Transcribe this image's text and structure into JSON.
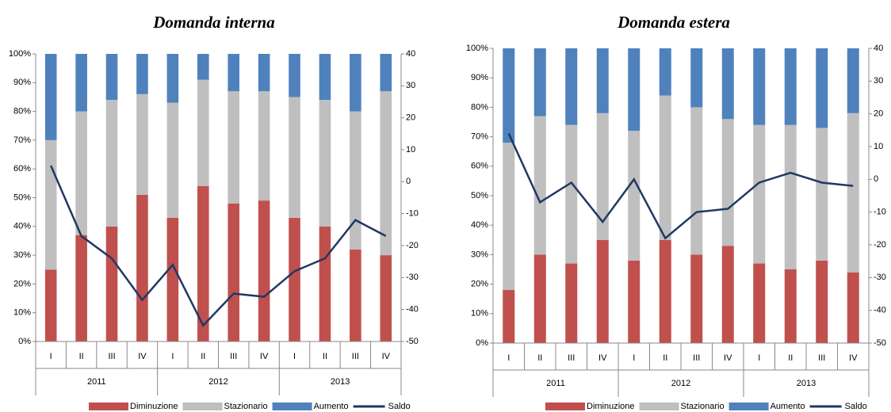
{
  "chart_data": [
    {
      "type": "bar",
      "stacked": true,
      "title": "Domanda interna",
      "categories": [
        "I",
        "II",
        "III",
        "IV",
        "I",
        "II",
        "III",
        "IV",
        "I",
        "II",
        "III",
        "IV"
      ],
      "groups": [
        "2011",
        "2012",
        "2013"
      ],
      "series": [
        {
          "name": "Diminuzione",
          "color": "#c0504d",
          "values": [
            25,
            37,
            40,
            51,
            43,
            54,
            48,
            49,
            43,
            40,
            32,
            30
          ]
        },
        {
          "name": "Stazionario",
          "color": "#bfbfbf",
          "values": [
            45,
            43,
            44,
            35,
            40,
            37,
            39,
            38,
            42,
            44,
            48,
            57
          ]
        },
        {
          "name": "Aumento",
          "color": "#4f81bd",
          "values": [
            30,
            20,
            16,
            14,
            17,
            9,
            13,
            13,
            15,
            16,
            20,
            13
          ]
        },
        {
          "name": "Saldo",
          "color": "#1f3864",
          "type": "line",
          "axis": "y2",
          "values": [
            5,
            -17,
            -24,
            -37,
            -26,
            -45,
            -35,
            -36,
            -28,
            -24,
            -12,
            -17
          ]
        }
      ],
      "ylim": [
        0,
        100
      ],
      "yticks": [
        {
          "value": 0,
          "label": "0%"
        },
        {
          "value": 10,
          "label": "10%"
        },
        {
          "value": 20,
          "label": "20%"
        },
        {
          "value": 30,
          "label": "30%"
        },
        {
          "value": 40,
          "label": "40%"
        },
        {
          "value": 50,
          "label": "50%"
        },
        {
          "value": 60,
          "label": "60%"
        },
        {
          "value": 70,
          "label": "70%"
        },
        {
          "value": 80,
          "label": "80%"
        },
        {
          "value": 90,
          "label": "90%"
        },
        {
          "value": 100,
          "label": "100%"
        }
      ],
      "y2lim": [
        -50,
        40
      ],
      "y2ticks": [
        -50,
        -40,
        -30,
        -20,
        -10,
        0,
        10,
        20,
        30,
        40
      ]
    },
    {
      "type": "bar",
      "stacked": true,
      "title": "Domanda estera",
      "categories": [
        "I",
        "II",
        "III",
        "IV",
        "I",
        "II",
        "III",
        "IV",
        "I",
        "II",
        "III",
        "IV"
      ],
      "groups": [
        "2011",
        "2012",
        "2013"
      ],
      "series": [
        {
          "name": "Diminuzione",
          "color": "#c0504d",
          "values": [
            18,
            30,
            27,
            35,
            28,
            35,
            30,
            33,
            27,
            25,
            28,
            24
          ]
        },
        {
          "name": "Stazionario",
          "color": "#bfbfbf",
          "values": [
            50,
            47,
            47,
            43,
            44,
            49,
            50,
            43,
            47,
            49,
            45,
            54
          ]
        },
        {
          "name": "Aumento",
          "color": "#4f81bd",
          "values": [
            32,
            23,
            26,
            22,
            28,
            16,
            20,
            24,
            26,
            26,
            27,
            22
          ]
        },
        {
          "name": "Saldo",
          "color": "#1f3864",
          "type": "line",
          "axis": "y2",
          "values": [
            14,
            -7,
            -1,
            -13,
            0,
            -18,
            -10,
            -9,
            -1,
            2,
            -1,
            -2
          ]
        }
      ],
      "ylim": [
        0,
        100
      ],
      "yticks": [
        {
          "value": 0,
          "label": "0%"
        },
        {
          "value": 10,
          "label": "10%"
        },
        {
          "value": 20,
          "label": "20%"
        },
        {
          "value": 30,
          "label": "30%"
        },
        {
          "value": 40,
          "label": "40%"
        },
        {
          "value": 50,
          "label": "50%"
        },
        {
          "value": 60,
          "label": "60%"
        },
        {
          "value": 70,
          "label": "70%"
        },
        {
          "value": 80,
          "label": "80%"
        },
        {
          "value": 90,
          "label": "90%"
        },
        {
          "value": 100,
          "label": "100%"
        }
      ],
      "y2lim": [
        -50,
        40
      ],
      "y2ticks": [
        -50,
        -40,
        -30,
        -20,
        -10,
        0,
        10,
        20,
        30,
        40
      ]
    }
  ]
}
